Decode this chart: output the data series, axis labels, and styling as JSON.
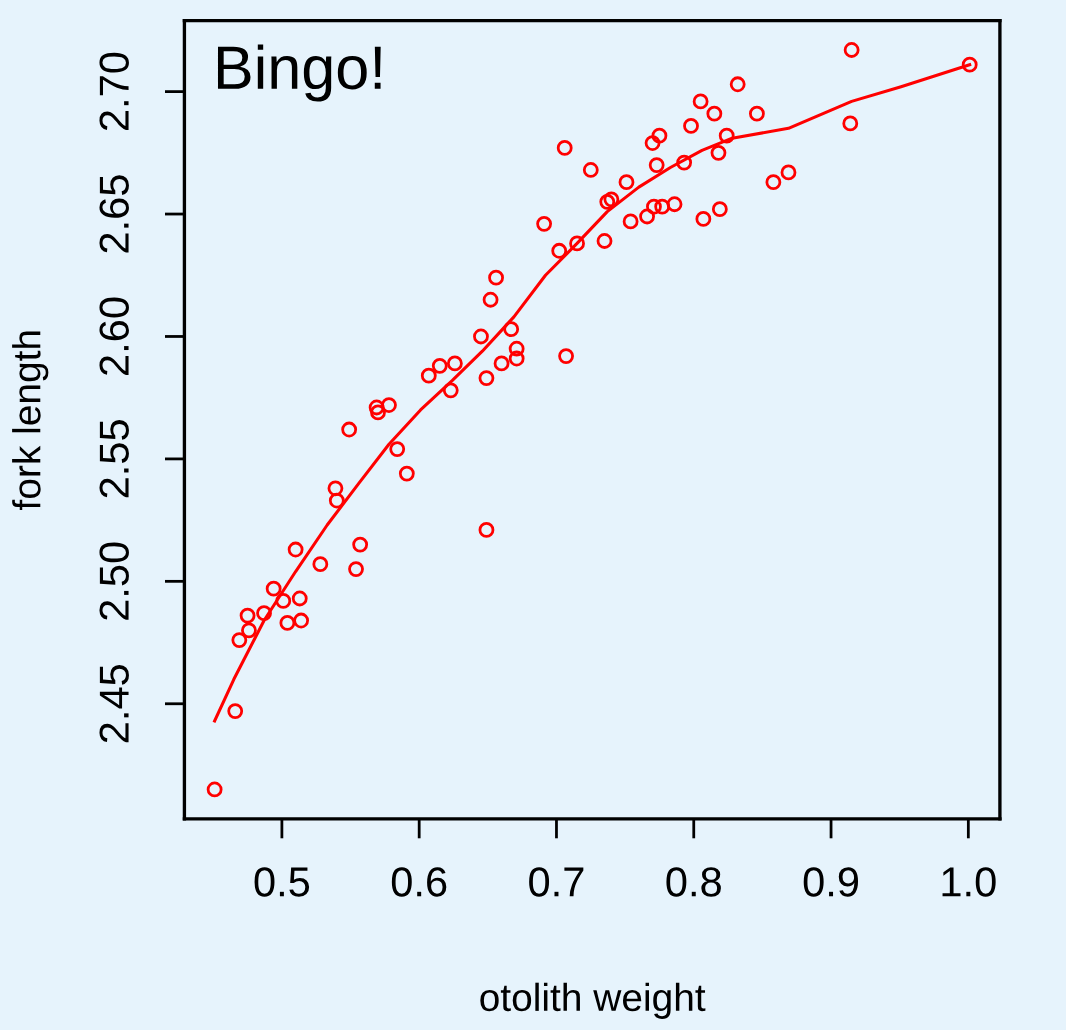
{
  "chart_data": {
    "type": "scatter",
    "xlabel": "otolith weight",
    "ylabel": "fork length",
    "annotations": [
      "Bingo!"
    ],
    "xlim": [
      0.429,
      1.023
    ],
    "ylim": [
      2.403,
      2.729
    ],
    "xticks": [
      {
        "value": 0.5,
        "label": "0.5"
      },
      {
        "value": 0.6,
        "label": "0.6"
      },
      {
        "value": 0.7,
        "label": "0.7"
      },
      {
        "value": 0.8,
        "label": "0.8"
      },
      {
        "value": 0.9,
        "label": "0.9"
      },
      {
        "value": 1.0,
        "label": "1.0"
      }
    ],
    "yticks": [
      {
        "value": 2.45,
        "label": "2.45"
      },
      {
        "value": 2.5,
        "label": "2.50"
      },
      {
        "value": 2.55,
        "label": "2.55"
      },
      {
        "value": 2.6,
        "label": "2.60"
      },
      {
        "value": 2.65,
        "label": "2.65"
      },
      {
        "value": 2.7,
        "label": "2.70"
      }
    ],
    "grid": false,
    "legend": false,
    "series": [
      {
        "marker": "circle",
        "color": "#ff0000",
        "x": [
          0.451,
          0.466,
          0.469,
          0.475,
          0.476,
          0.487,
          0.494,
          0.501,
          0.504,
          0.51,
          0.513,
          0.514,
          0.528,
          0.539,
          0.54,
          0.549,
          0.554,
          0.557,
          0.569,
          0.57,
          0.578,
          0.584,
          0.591,
          0.607,
          0.615,
          0.623,
          0.626,
          0.645,
          0.649,
          0.649,
          0.652,
          0.656,
          0.66,
          0.667,
          0.671,
          0.671,
          0.691,
          0.702,
          0.706,
          0.707,
          0.715,
          0.725,
          0.735,
          0.737,
          0.74,
          0.751,
          0.754,
          0.766,
          0.77,
          0.771,
          0.773,
          0.775,
          0.777,
          0.786,
          0.793,
          0.798,
          0.805,
          0.807,
          0.815,
          0.818,
          0.819,
          0.824,
          0.832,
          0.846,
          0.858,
          0.869,
          0.915,
          0.914,
          1.001
        ],
        "values": [
          2.415,
          2.447,
          2.476,
          2.486,
          2.48,
          2.487,
          2.497,
          2.492,
          2.483,
          2.513,
          2.493,
          2.484,
          2.507,
          2.538,
          2.533,
          2.562,
          2.505,
          2.515,
          2.571,
          2.569,
          2.572,
          2.554,
          2.544,
          2.584,
          2.588,
          2.578,
          2.589,
          2.6,
          2.521,
          2.583,
          2.615,
          2.624,
          2.589,
          2.603,
          2.595,
          2.591,
          2.646,
          2.635,
          2.677,
          2.592,
          2.638,
          2.668,
          2.639,
          2.655,
          2.656,
          2.663,
          2.647,
          2.649,
          2.679,
          2.653,
          2.67,
          2.682,
          2.653,
          2.654,
          2.671,
          2.686,
          2.696,
          2.648,
          2.691,
          2.675,
          2.652,
          2.682,
          2.703,
          2.691,
          2.663,
          2.667,
          2.717,
          2.687,
          2.711
        ]
      },
      {
        "type": "line",
        "marker": "none",
        "line_style": "solid",
        "color": "#ff0000",
        "x": [
          0.451,
          0.465,
          0.487,
          0.51,
          0.533,
          0.556,
          0.578,
          0.601,
          0.624,
          0.646,
          0.669,
          0.692,
          0.715,
          0.737,
          0.76,
          0.783,
          0.806,
          0.828,
          0.869,
          0.915,
          0.951,
          1.001
        ],
        "values": [
          2.443,
          2.46,
          2.484,
          2.504,
          2.523,
          2.54,
          2.556,
          2.57,
          2.582,
          2.594,
          2.608,
          2.625,
          2.638,
          2.651,
          2.661,
          2.669,
          2.676,
          2.681,
          2.685,
          2.696,
          2.702,
          2.711
        ]
      }
    ]
  }
}
